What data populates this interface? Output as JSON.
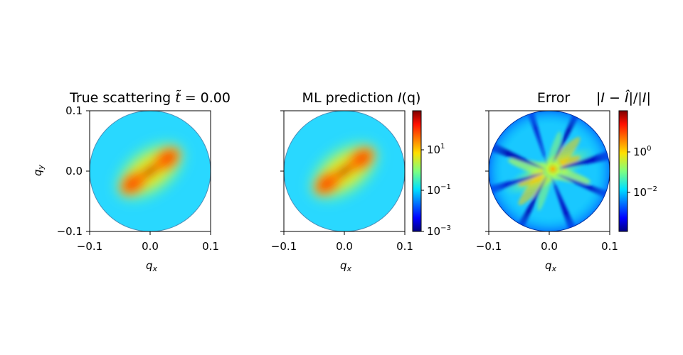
{
  "chart_data": [
    {
      "type": "heatmap",
      "title": "True scattering t̃ = 0.00",
      "title_parts": {
        "prefix": "True scattering ",
        "symbol": "t̃",
        "suffix": " = 0.00"
      },
      "xlabel": "q",
      "xlabel_sub": "x",
      "ylabel": "q",
      "ylabel_sub": "y",
      "xlim": [
        -0.1,
        0.1
      ],
      "ylim": [
        -0.1,
        0.1
      ],
      "xticks": [
        "−0.1",
        "0.0",
        "0.1"
      ],
      "yticks": [
        "−0.1",
        "0.0",
        "0.1"
      ],
      "colormap": "jet",
      "scale": "log",
      "clim": [
        0.001,
        1000
      ],
      "mask": "circle radius 0.1",
      "pattern": "elongated intensity lobe along the 45 degree diagonal, peak at the origin"
    },
    {
      "type": "heatmap",
      "title": "ML prediction I(q)",
      "title_parts": {
        "prefix": "ML prediction ",
        "symbol": "I",
        "suffix": "(q)"
      },
      "xlabel": "q",
      "xlabel_sub": "x",
      "xlim": [
        -0.1,
        0.1
      ],
      "ylim": [
        -0.1,
        0.1
      ],
      "xticks": [
        "−0.1",
        "0.0",
        "0.1"
      ],
      "colormap": "jet",
      "scale": "log",
      "clim": [
        0.001,
        1000
      ],
      "colorbar": {
        "ticks": [
          {
            "value": 10,
            "base": "10",
            "exp": "1"
          },
          {
            "value": 0.1,
            "base": "10",
            "exp": "−1"
          },
          {
            "value": 0.001,
            "base": "10",
            "exp": "−3"
          }
        ]
      }
    },
    {
      "type": "heatmap",
      "title": "Error",
      "title2": "|I − Î|/|I|",
      "title2_parts": {
        "a": "|",
        "b": "I",
        "c": " − ",
        "d": "Î",
        "e": "|/|",
        "f": "I",
        "g": "|"
      },
      "xlabel": "q",
      "xlabel_sub": "x",
      "xlim": [
        -0.1,
        0.1
      ],
      "ylim": [
        -0.1,
        0.1
      ],
      "xticks": [
        "−0.1",
        "0.0",
        "0.1"
      ],
      "colormap": "jet",
      "scale": "log",
      "clim": [
        0.0003,
        10
      ],
      "pattern": "error low over most of the disc with radial streaks; dark-blue radial bands at roughly 20, 70, 120, 160, 200, 250, 290 and 335 degrees",
      "colorbar": {
        "ticks": [
          {
            "value": 1,
            "base": "10",
            "exp": "0"
          },
          {
            "value": 0.01,
            "base": "10",
            "exp": "−2"
          }
        ]
      }
    }
  ]
}
